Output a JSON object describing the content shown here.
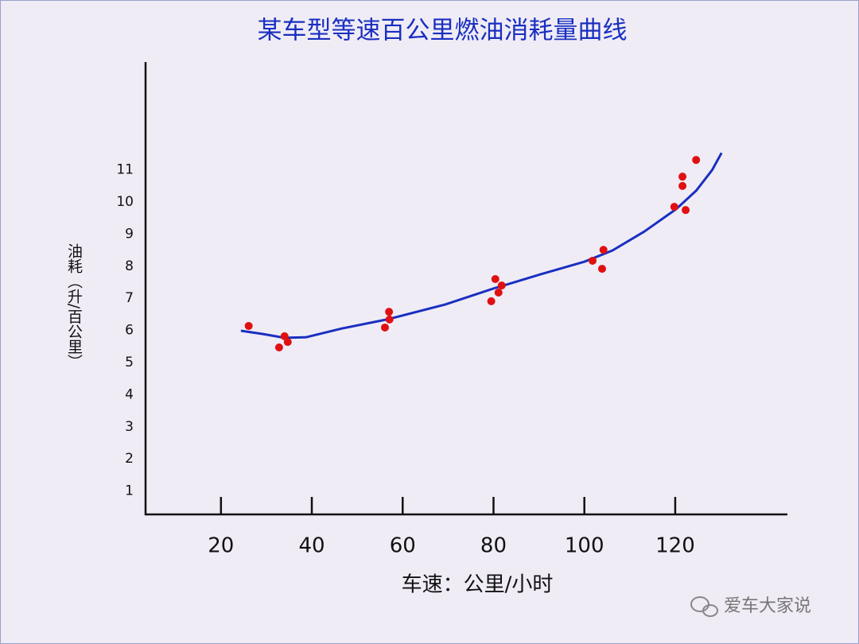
{
  "chart_data": {
    "type": "scatter",
    "title": "某车型等速百公里燃油消耗量曲线",
    "xlabel": "车速：公里/小时",
    "ylabel": "油耗（升/百公里）",
    "xlim": [
      3.4,
      144.7
    ],
    "ylim": [
      0.27,
      14.36
    ],
    "xticks": [
      20,
      40,
      60,
      80,
      100,
      120
    ],
    "yticks": [
      1,
      2,
      3,
      4,
      5,
      6,
      7,
      8,
      9,
      10,
      11
    ],
    "points": {
      "color": "#e01010",
      "x": [
        26.1,
        32.8,
        34.0,
        34.7,
        56.1,
        57.0,
        57.1,
        79.5,
        80.4,
        81.1,
        81.8,
        101.8,
        103.9,
        104.2,
        119.8,
        121.6,
        121.6,
        122.3,
        124.6
      ],
      "y": [
        6.14,
        5.47,
        5.82,
        5.64,
        6.09,
        6.58,
        6.34,
        6.91,
        7.6,
        7.18,
        7.4,
        8.17,
        7.92,
        8.51,
        9.85,
        10.79,
        10.5,
        9.75,
        11.31
      ]
    },
    "curve": {
      "color": "#1a2fc0",
      "x": [
        24.4,
        29.1,
        34.0,
        38.8,
        46.6,
        57.1,
        69.4,
        79.9,
        90.4,
        100.0,
        106.2,
        113.2,
        120.2,
        124.6,
        128.1,
        130.2
      ],
      "y": [
        5.99,
        5.89,
        5.77,
        5.79,
        6.06,
        6.36,
        6.81,
        7.3,
        7.75,
        8.14,
        8.49,
        9.08,
        9.78,
        10.35,
        10.99,
        11.53
      ]
    }
  },
  "watermark": "爱车大家说"
}
